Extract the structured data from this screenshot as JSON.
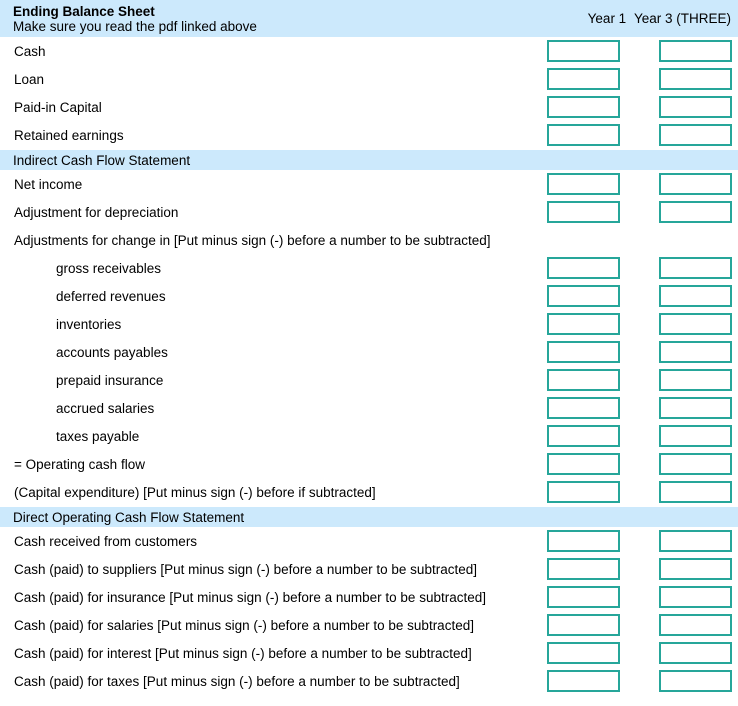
{
  "header": {
    "title": "Ending Balance Sheet",
    "subtitle": "Make sure you read the pdf linked above",
    "col1_label": "Year 1",
    "col2_label": "Year 3 (THREE)"
  },
  "colors": {
    "section_band_bg": "#cce9fc",
    "input_border": "#26a69a",
    "text": "#000000",
    "background": "#ffffff"
  },
  "rows": [
    {
      "type": "field",
      "name": "cash",
      "label": "Cash",
      "indent": false
    },
    {
      "type": "field",
      "name": "loan",
      "label": "Loan",
      "indent": false
    },
    {
      "type": "field",
      "name": "paid-in-capital",
      "label": "Paid-in Capital",
      "indent": false
    },
    {
      "type": "field",
      "name": "retained-earnings",
      "label": "Retained earnings",
      "indent": false
    },
    {
      "type": "section",
      "name": "indirect-cash-flow",
      "label": "Indirect Cash Flow Statement"
    },
    {
      "type": "field",
      "name": "net-income",
      "label": "Net income",
      "indent": false
    },
    {
      "type": "field",
      "name": "adjustment-depreciation",
      "label": "Adjustment for depreciation",
      "indent": false
    },
    {
      "type": "note",
      "name": "adjustments-for-change",
      "label": "Adjustments for change in [Put minus sign (-) before a number to be subtracted]",
      "indent": false
    },
    {
      "type": "field",
      "name": "gross-receivables",
      "label": "gross receivables",
      "indent": true
    },
    {
      "type": "field",
      "name": "deferred-revenues",
      "label": "deferred revenues",
      "indent": true
    },
    {
      "type": "field",
      "name": "inventories",
      "label": "inventories",
      "indent": true
    },
    {
      "type": "field",
      "name": "accounts-payables",
      "label": "accounts payables",
      "indent": true
    },
    {
      "type": "field",
      "name": "prepaid-insurance",
      "label": "prepaid insurance",
      "indent": true
    },
    {
      "type": "field",
      "name": "accrued-salaries",
      "label": "accrued salaries",
      "indent": true
    },
    {
      "type": "field",
      "name": "taxes-payable",
      "label": "taxes payable",
      "indent": true
    },
    {
      "type": "field",
      "name": "operating-cash-flow",
      "label": "= Operating cash flow",
      "indent": false
    },
    {
      "type": "field",
      "name": "capital-expenditure",
      "label": "(Capital expenditure) [Put minus sign (-) before if subtracted]",
      "indent": false
    },
    {
      "type": "section",
      "name": "direct-operating-cash-flow",
      "label": "Direct Operating Cash Flow Statement"
    },
    {
      "type": "field",
      "name": "cash-received-customers",
      "label": "Cash received from customers",
      "indent": false
    },
    {
      "type": "field",
      "name": "cash-paid-suppliers",
      "label": "Cash (paid) to suppliers [Put minus sign (-) before a number to be subtracted]",
      "indent": false
    },
    {
      "type": "field",
      "name": "cash-paid-insurance",
      "label": "Cash (paid) for insurance [Put minus sign (-) before a number to be subtracted]",
      "indent": false
    },
    {
      "type": "field",
      "name": "cash-paid-salaries",
      "label": "Cash (paid) for salaries [Put minus sign (-) before a number to be subtracted]",
      "indent": false
    },
    {
      "type": "field",
      "name": "cash-paid-interest",
      "label": "Cash (paid) for interest [Put minus sign (-) before a number to be subtracted]",
      "indent": false
    },
    {
      "type": "field",
      "name": "cash-paid-taxes",
      "label": "Cash (paid) for taxes [Put minus sign (-) before a number to be subtracted]",
      "indent": false
    }
  ],
  "input_columns": [
    "year1",
    "year3"
  ]
}
